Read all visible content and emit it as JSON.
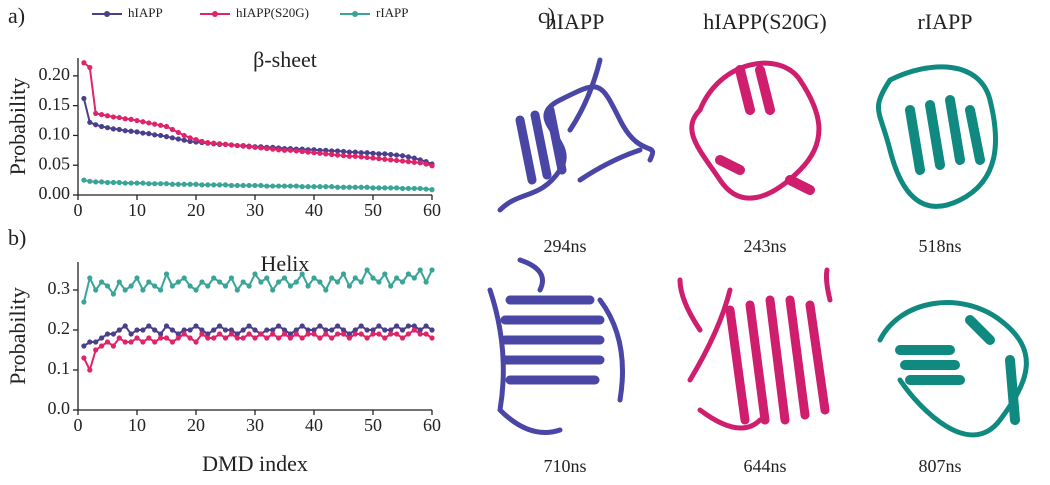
{
  "chart_data": [
    {
      "type": "line",
      "panel": "a)",
      "title": "β-sheet",
      "ylabel": "Probability",
      "x": [
        1,
        2,
        3,
        4,
        5,
        6,
        7,
        8,
        9,
        10,
        11,
        12,
        13,
        14,
        15,
        16,
        17,
        18,
        19,
        20,
        21,
        22,
        23,
        24,
        25,
        26,
        27,
        28,
        29,
        30,
        31,
        32,
        33,
        34,
        35,
        36,
        37,
        38,
        39,
        40,
        41,
        42,
        43,
        44,
        45,
        46,
        47,
        48,
        49,
        50,
        51,
        52,
        53,
        54,
        55,
        56,
        57,
        58,
        59,
        60
      ],
      "series": [
        {
          "name": "hIAPP",
          "color": "#4b3f8c",
          "values": [
            0.162,
            0.122,
            0.118,
            0.115,
            0.113,
            0.111,
            0.11,
            0.108,
            0.107,
            0.106,
            0.104,
            0.103,
            0.101,
            0.1,
            0.098,
            0.096,
            0.094,
            0.092,
            0.09,
            0.089,
            0.088,
            0.087,
            0.086,
            0.085,
            0.085,
            0.084,
            0.083,
            0.083,
            0.082,
            0.081,
            0.081,
            0.08,
            0.08,
            0.079,
            0.078,
            0.078,
            0.077,
            0.077,
            0.076,
            0.076,
            0.075,
            0.075,
            0.074,
            0.074,
            0.073,
            0.072,
            0.072,
            0.071,
            0.071,
            0.07,
            0.069,
            0.069,
            0.068,
            0.067,
            0.066,
            0.064,
            0.062,
            0.059,
            0.056,
            0.052
          ]
        },
        {
          "name": "hIAPP(S20G)",
          "color": "#e0246a",
          "values": [
            0.222,
            0.214,
            0.137,
            0.135,
            0.133,
            0.131,
            0.13,
            0.128,
            0.127,
            0.125,
            0.123,
            0.121,
            0.119,
            0.117,
            0.115,
            0.11,
            0.105,
            0.1,
            0.096,
            0.093,
            0.09,
            0.088,
            0.087,
            0.086,
            0.085,
            0.084,
            0.083,
            0.082,
            0.081,
            0.08,
            0.079,
            0.078,
            0.077,
            0.076,
            0.075,
            0.075,
            0.074,
            0.073,
            0.072,
            0.071,
            0.07,
            0.069,
            0.068,
            0.067,
            0.066,
            0.065,
            0.065,
            0.064,
            0.063,
            0.062,
            0.061,
            0.06,
            0.059,
            0.058,
            0.057,
            0.056,
            0.055,
            0.054,
            0.052,
            0.049
          ]
        },
        {
          "name": "rIAPP",
          "color": "#3aa597",
          "values": [
            0.025,
            0.023,
            0.022,
            0.022,
            0.021,
            0.021,
            0.021,
            0.02,
            0.02,
            0.02,
            0.02,
            0.019,
            0.019,
            0.019,
            0.019,
            0.018,
            0.018,
            0.018,
            0.018,
            0.018,
            0.017,
            0.017,
            0.017,
            0.017,
            0.017,
            0.016,
            0.016,
            0.016,
            0.016,
            0.016,
            0.016,
            0.015,
            0.015,
            0.015,
            0.015,
            0.015,
            0.015,
            0.014,
            0.014,
            0.014,
            0.014,
            0.014,
            0.014,
            0.013,
            0.013,
            0.013,
            0.013,
            0.013,
            0.013,
            0.012,
            0.012,
            0.012,
            0.012,
            0.012,
            0.011,
            0.011,
            0.011,
            0.011,
            0.01,
            0.009
          ]
        }
      ],
      "xlim": [
        0,
        60
      ],
      "xticks": [
        0,
        10,
        20,
        30,
        40,
        50,
        60
      ],
      "ylim": [
        0,
        0.23
      ],
      "yticks": [
        {
          "value": 0,
          "label": "0.00"
        },
        {
          "value": 0.05,
          "label": "0.05"
        },
        {
          "value": 0.1,
          "label": "0.10"
        },
        {
          "value": 0.15,
          "label": "0.15"
        },
        {
          "value": 0.2,
          "label": "0.20"
        }
      ],
      "legend": "top"
    },
    {
      "type": "line",
      "panel": "b)",
      "title": "Helix",
      "ylabel": "Probability",
      "xlabel": "DMD index",
      "x": [
        1,
        2,
        3,
        4,
        5,
        6,
        7,
        8,
        9,
        10,
        11,
        12,
        13,
        14,
        15,
        16,
        17,
        18,
        19,
        20,
        21,
        22,
        23,
        24,
        25,
        26,
        27,
        28,
        29,
        30,
        31,
        32,
        33,
        34,
        35,
        36,
        37,
        38,
        39,
        40,
        41,
        42,
        43,
        44,
        45,
        46,
        47,
        48,
        49,
        50,
        51,
        52,
        53,
        54,
        55,
        56,
        57,
        58,
        59,
        60
      ],
      "series": [
        {
          "color": "#3aa597",
          "values": [
            0.27,
            0.33,
            0.3,
            0.32,
            0.31,
            0.29,
            0.32,
            0.3,
            0.31,
            0.33,
            0.3,
            0.32,
            0.31,
            0.3,
            0.34,
            0.31,
            0.32,
            0.33,
            0.31,
            0.3,
            0.32,
            0.31,
            0.33,
            0.32,
            0.31,
            0.33,
            0.3,
            0.32,
            0.31,
            0.34,
            0.32,
            0.33,
            0.3,
            0.32,
            0.33,
            0.31,
            0.32,
            0.34,
            0.31,
            0.33,
            0.32,
            0.3,
            0.33,
            0.32,
            0.34,
            0.31,
            0.33,
            0.32,
            0.35,
            0.33,
            0.32,
            0.34,
            0.31,
            0.33,
            0.32,
            0.34,
            0.33,
            0.35,
            0.32,
            0.35
          ]
        },
        {
          "color": "#4b3f8c",
          "values": [
            0.16,
            0.17,
            0.17,
            0.18,
            0.19,
            0.19,
            0.2,
            0.21,
            0.19,
            0.2,
            0.2,
            0.21,
            0.2,
            0.19,
            0.21,
            0.2,
            0.19,
            0.2,
            0.2,
            0.21,
            0.2,
            0.19,
            0.2,
            0.21,
            0.2,
            0.2,
            0.19,
            0.2,
            0.21,
            0.2,
            0.19,
            0.2,
            0.2,
            0.21,
            0.2,
            0.19,
            0.2,
            0.21,
            0.2,
            0.2,
            0.21,
            0.2,
            0.2,
            0.21,
            0.2,
            0.19,
            0.2,
            0.21,
            0.2,
            0.2,
            0.21,
            0.2,
            0.2,
            0.21,
            0.2,
            0.21,
            0.21,
            0.2,
            0.21,
            0.2
          ]
        },
        {
          "color": "#e0246a",
          "values": [
            0.13,
            0.1,
            0.15,
            0.16,
            0.17,
            0.16,
            0.18,
            0.17,
            0.17,
            0.18,
            0.17,
            0.18,
            0.17,
            0.18,
            0.18,
            0.17,
            0.18,
            0.19,
            0.18,
            0.17,
            0.19,
            0.18,
            0.18,
            0.19,
            0.18,
            0.19,
            0.18,
            0.18,
            0.19,
            0.18,
            0.19,
            0.18,
            0.19,
            0.18,
            0.19,
            0.18,
            0.19,
            0.18,
            0.19,
            0.19,
            0.18,
            0.19,
            0.18,
            0.19,
            0.19,
            0.18,
            0.19,
            0.19,
            0.18,
            0.19,
            0.19,
            0.18,
            0.19,
            0.19,
            0.18,
            0.19,
            0.2,
            0.19,
            0.19,
            0.18
          ]
        }
      ],
      "xlim": [
        0,
        60
      ],
      "xticks": [
        0,
        10,
        20,
        30,
        40,
        50,
        60
      ],
      "ylim": [
        0,
        0.37
      ],
      "yticks": [
        {
          "value": 0,
          "label": "0.0"
        },
        {
          "value": 0.1,
          "label": "0.1"
        },
        {
          "value": 0.2,
          "label": "0.2"
        },
        {
          "value": 0.3,
          "label": "0.3"
        }
      ]
    }
  ],
  "panel_c": {
    "label": "c)",
    "columns": [
      "hIAPP",
      "hIAPP(S20G)",
      "rIAPP"
    ],
    "times": [
      [
        "294ns",
        "243ns",
        "518ns"
      ],
      [
        "710ns",
        "644ns",
        "807ns"
      ]
    ]
  }
}
